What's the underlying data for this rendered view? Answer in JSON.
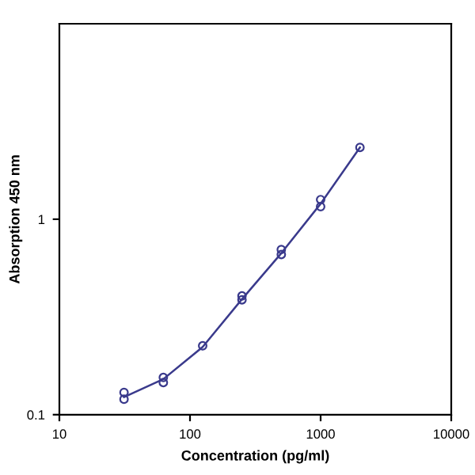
{
  "chart_data": {
    "type": "scatter",
    "xlabel": "Concentration (pg/ml)",
    "ylabel": "Absorption 450 nm",
    "log": "xy",
    "xlim": [
      10,
      10000
    ],
    "ylim": [
      0.1,
      10
    ],
    "xticks": [
      10,
      100,
      1000,
      10000
    ],
    "yticks": [
      0.1,
      1
    ],
    "grid": false,
    "legend": false,
    "marker": "circle",
    "series": [
      {
        "color": "#3a3a8c",
        "x": [
          31.25,
          31.25,
          62.5,
          62.5,
          125,
          250,
          250,
          500,
          500,
          1000,
          1000,
          2000
        ],
        "values": [
          0.12,
          0.13,
          0.146,
          0.155,
          0.225,
          0.387,
          0.405,
          0.66,
          0.7,
          1.16,
          1.26,
          2.33
        ]
      },
      {
        "type": "line",
        "color": "#3a3a8c",
        "marker": "none",
        "x": [
          31.25,
          62.5,
          125,
          250,
          500,
          1000,
          2000
        ],
        "values": [
          0.123,
          0.152,
          0.222,
          0.39,
          0.67,
          1.2,
          2.33
        ]
      }
    ]
  }
}
